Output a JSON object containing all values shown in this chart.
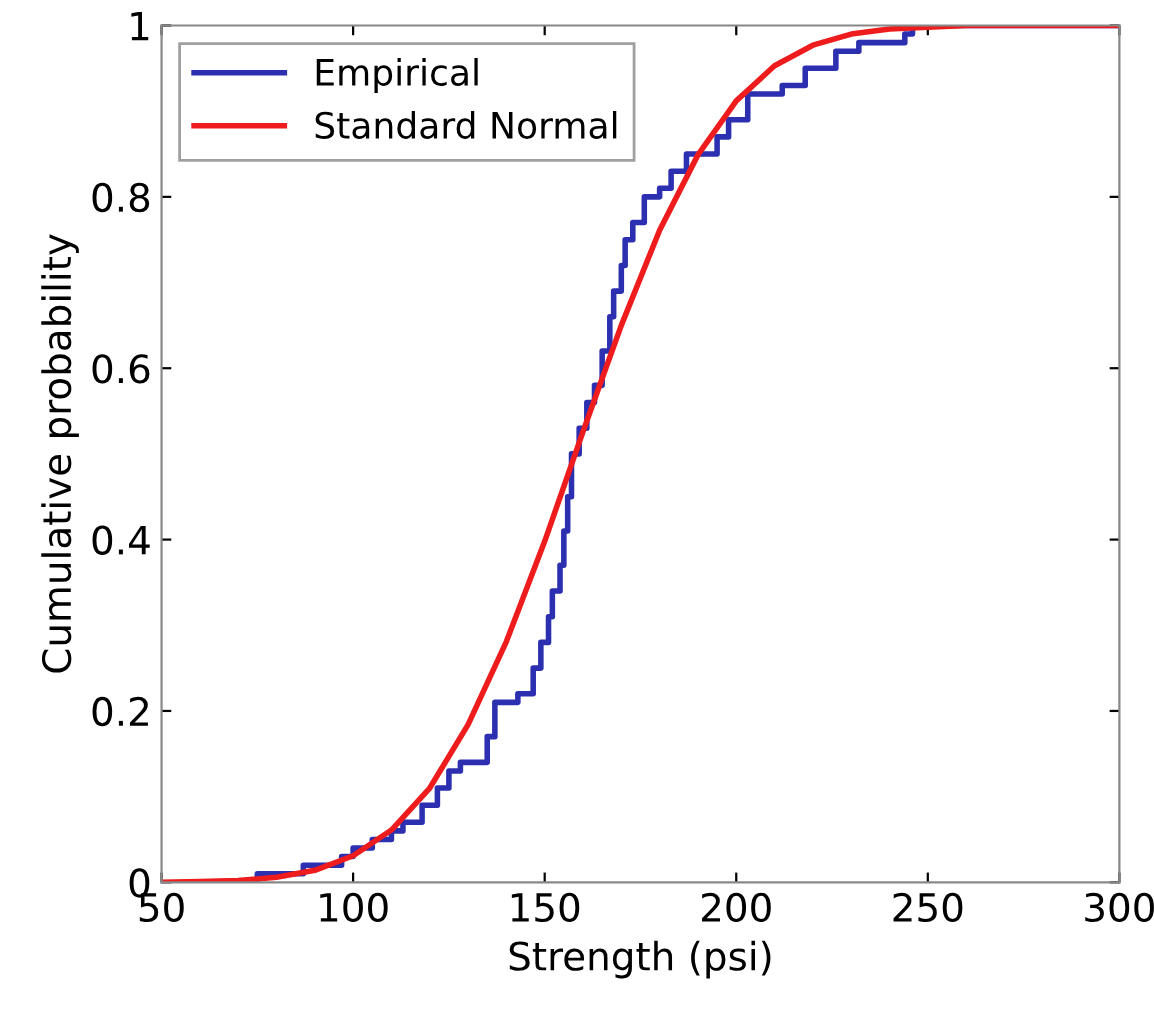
{
  "chart_data": {
    "type": "line",
    "xlabel": "Strength (psi)",
    "ylabel": "Cumulative probability",
    "xlim": [
      50,
      300
    ],
    "ylim": [
      0,
      1
    ],
    "xticks": [
      50,
      100,
      150,
      200,
      250,
      300
    ],
    "yticks": [
      0,
      0.2,
      0.4,
      0.6,
      0.8,
      1
    ],
    "grid": false,
    "legend": "top left",
    "series": [
      {
        "name": "Empirical",
        "type": "step",
        "color": "#2b2fb0",
        "x": [
          75,
          75,
          87,
          97,
          100,
          105,
          110,
          113,
          118,
          122,
          125,
          128,
          135,
          137,
          143,
          147,
          149,
          151,
          152,
          154,
          155,
          156,
          157,
          159,
          161,
          163,
          165,
          167,
          168,
          170,
          171,
          173,
          176,
          180,
          183,
          187,
          195,
          198,
          203,
          212,
          218,
          226,
          232,
          244,
          246,
          300
        ],
        "values": [
          0,
          0.01,
          0.02,
          0.03,
          0.04,
          0.05,
          0.06,
          0.07,
          0.09,
          0.11,
          0.13,
          0.14,
          0.17,
          0.21,
          0.22,
          0.25,
          0.28,
          0.31,
          0.34,
          0.37,
          0.41,
          0.45,
          0.5,
          0.53,
          0.56,
          0.58,
          0.62,
          0.66,
          0.69,
          0.72,
          0.75,
          0.77,
          0.8,
          0.81,
          0.83,
          0.85,
          0.87,
          0.89,
          0.92,
          0.93,
          0.95,
          0.97,
          0.98,
          0.99,
          1,
          1
        ]
      },
      {
        "name": "Standard Normal",
        "color": "#ee1c1c",
        "x": [
          50,
          60,
          70,
          80,
          90,
          100,
          110,
          120,
          130,
          140,
          150,
          160,
          170,
          180,
          190,
          200,
          210,
          220,
          230,
          240,
          250,
          260,
          300
        ],
        "values": [
          0,
          0.001,
          0.002,
          0.006,
          0.014,
          0.031,
          0.061,
          0.11,
          0.184,
          0.281,
          0.398,
          0.526,
          0.65,
          0.761,
          0.849,
          0.912,
          0.953,
          0.977,
          0.99,
          0.996,
          0.998,
          1,
          1
        ]
      }
    ]
  }
}
